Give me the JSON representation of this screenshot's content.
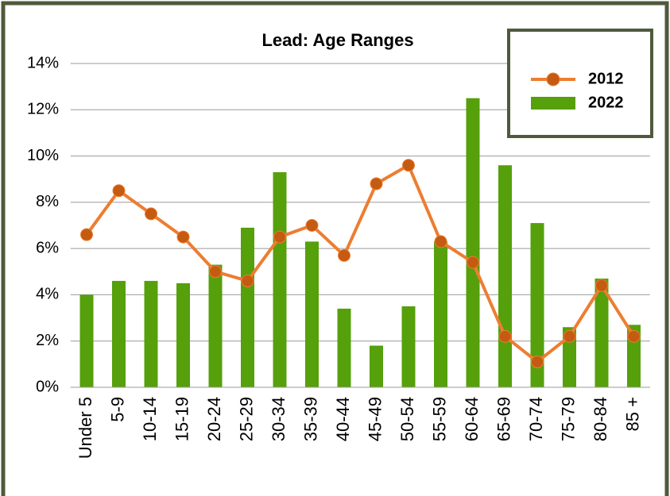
{
  "chart_data": {
    "type": "bar_line",
    "title": "Lead: Age Ranges",
    "categories": [
      "Under 5",
      "5-9",
      "10-14",
      "15-19",
      "20-24",
      "25-29",
      "30-34",
      "35-39",
      "40-44",
      "45-49",
      "50-54",
      "55-59",
      "60-64",
      "65-69",
      "70-74",
      "75-79",
      "80-84",
      "85 +"
    ],
    "series": [
      {
        "name": "2012",
        "type": "line",
        "color": "#ed7d31",
        "marker_color": "#c55a11",
        "values": [
          6.6,
          8.5,
          7.5,
          6.5,
          5.0,
          4.6,
          6.5,
          7.0,
          5.7,
          8.8,
          9.6,
          6.3,
          5.4,
          2.2,
          1.1,
          2.2,
          4.4,
          2.2
        ]
      },
      {
        "name": "2022",
        "type": "bar",
        "color": "#55a00b",
        "values": [
          4.0,
          4.6,
          4.6,
          4.5,
          5.3,
          6.9,
          9.3,
          6.3,
          3.4,
          1.8,
          3.5,
          6.3,
          12.5,
          9.6,
          7.1,
          2.6,
          4.7,
          2.7
        ]
      }
    ],
    "ylim": [
      0,
      14
    ],
    "yticks": [
      {
        "value": 0,
        "label": "0%"
      },
      {
        "value": 2,
        "label": "2%"
      },
      {
        "value": 4,
        "label": "4%"
      },
      {
        "value": 6,
        "label": "6%"
      },
      {
        "value": 8,
        "label": "8%"
      },
      {
        "value": 10,
        "label": "10%"
      },
      {
        "value": 12,
        "label": "12%"
      },
      {
        "value": 14,
        "label": "14%"
      }
    ],
    "grid": true,
    "legend": "top-right"
  }
}
